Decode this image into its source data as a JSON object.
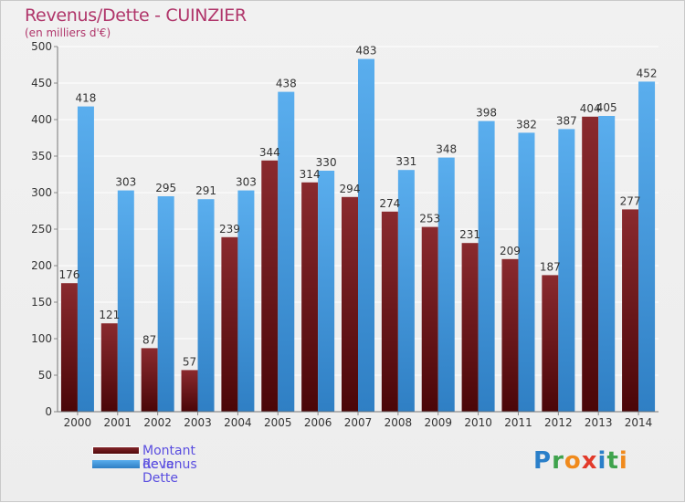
{
  "title": "Revenus/Dette - CUINZIER",
  "subtitle": "(en milliers d'€)",
  "legend": [
    {
      "label": "Montant de la Dette",
      "color": "#7a1a1e"
    },
    {
      "label": "Revenus",
      "color": "#4d9fe3"
    }
  ],
  "logo": {
    "text": "Proxiti",
    "letters": [
      {
        "ch": "P",
        "color": "#2a7fc9"
      },
      {
        "ch": "r",
        "color": "#3fa34d"
      },
      {
        "ch": "o",
        "color": "#f08a1c"
      },
      {
        "ch": "x",
        "color": "#e23a2a"
      },
      {
        "ch": "i",
        "color": "#2a7fc9"
      },
      {
        "ch": "t",
        "color": "#3fa34d"
      },
      {
        "ch": "i",
        "color": "#f08a1c"
      }
    ]
  },
  "chart_data": {
    "type": "bar",
    "title": "Revenus/Dette - CUINZIER",
    "subtitle": "(en milliers d'€)",
    "categories": [
      "2000",
      "2001",
      "2002",
      "2003",
      "2004",
      "2005",
      "2006",
      "2007",
      "2008",
      "2009",
      "2010",
      "2011",
      "2012",
      "2013",
      "2014"
    ],
    "series": [
      {
        "name": "Montant de la Dette",
        "color": "#7a1a1e",
        "values": [
          176,
          121,
          87,
          57,
          239,
          344,
          314,
          294,
          274,
          253,
          231,
          209,
          187,
          404,
          277
        ]
      },
      {
        "name": "Revenus",
        "color": "#4d9fe3",
        "values": [
          418,
          303,
          295,
          291,
          303,
          438,
          330,
          483,
          331,
          348,
          398,
          382,
          387,
          405,
          452
        ]
      }
    ],
    "ylim": [
      0,
      500
    ],
    "yticks": [
      0,
      50,
      100,
      150,
      200,
      250,
      300,
      350,
      400,
      450,
      500
    ],
    "grid": true,
    "legend_position": "bottom-left"
  }
}
